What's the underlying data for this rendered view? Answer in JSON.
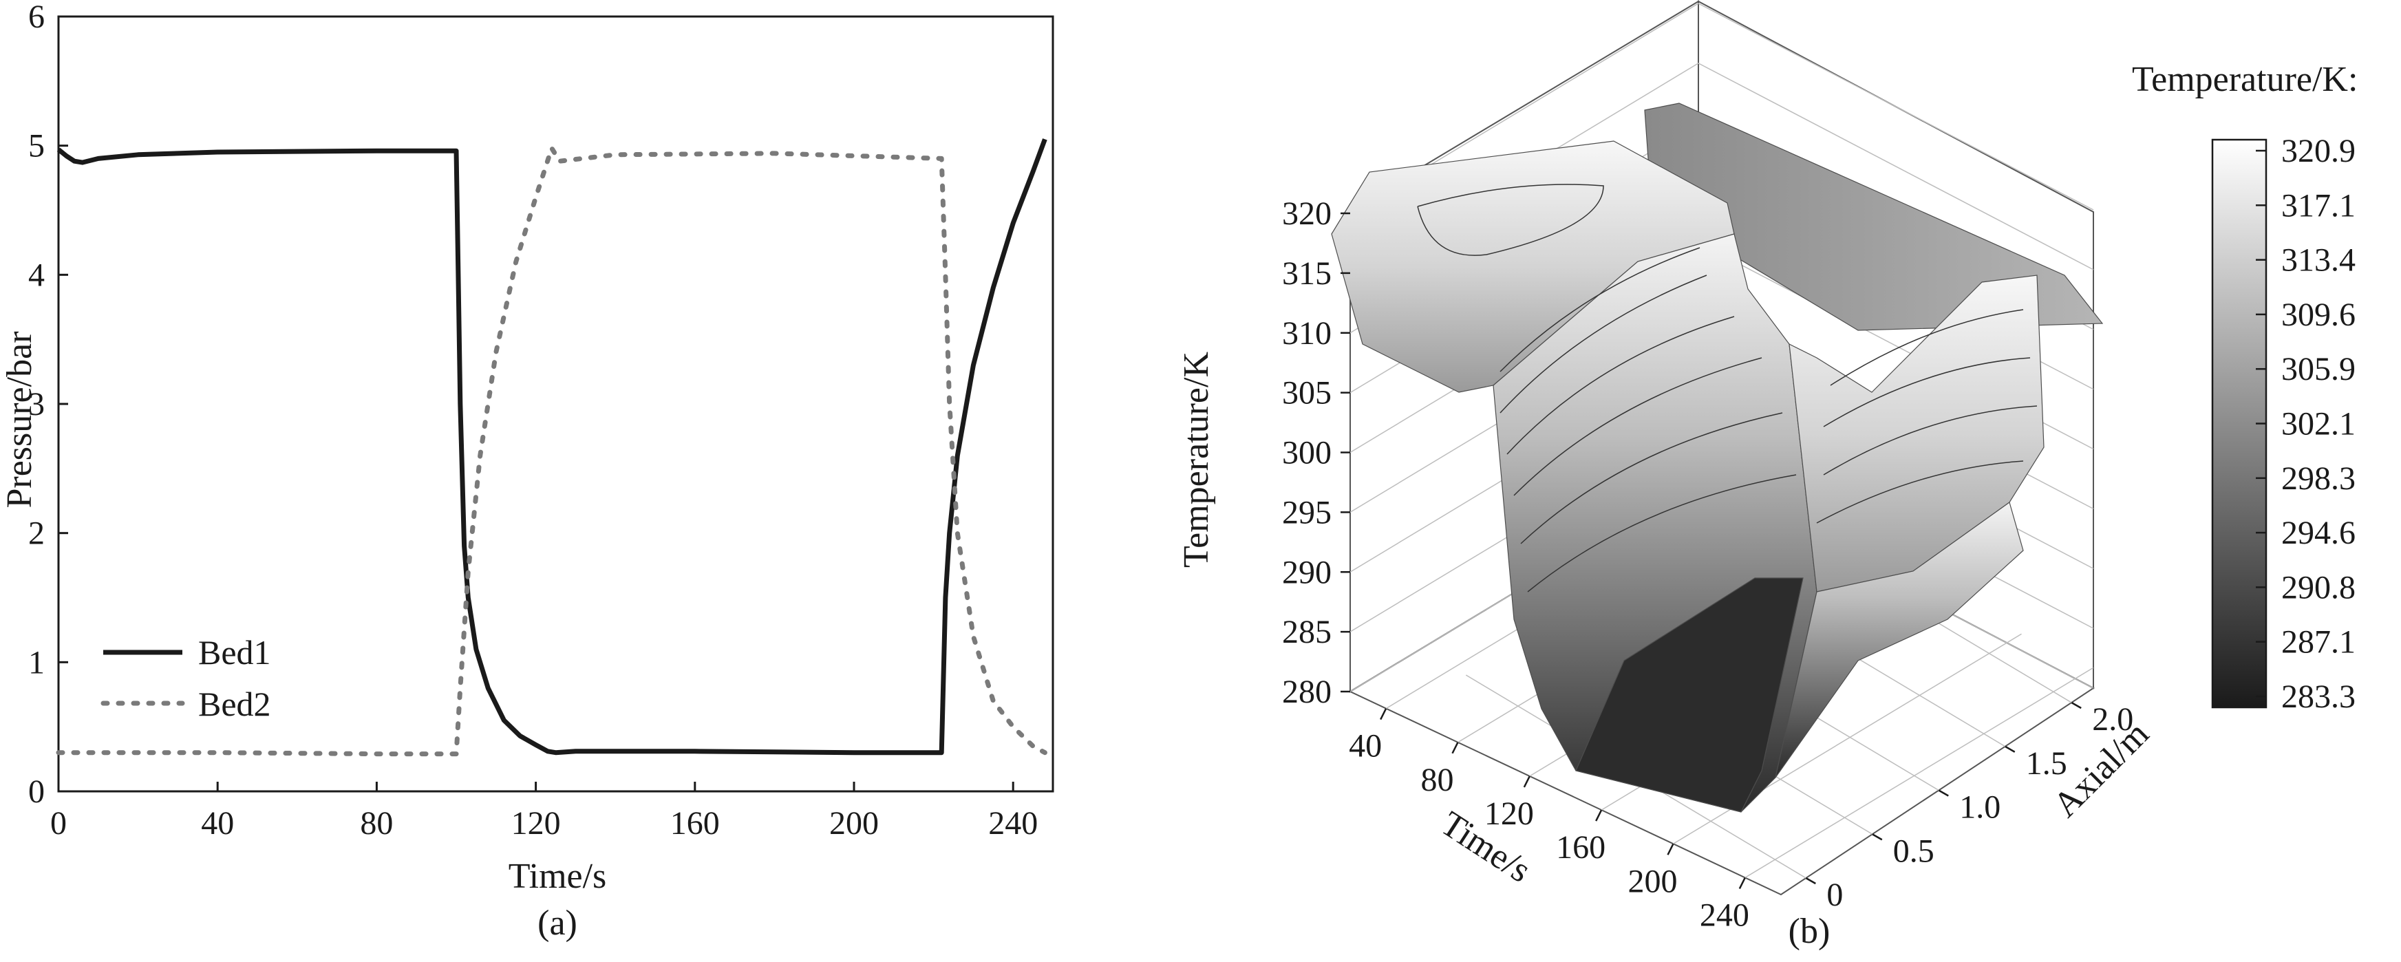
{
  "chart_data": [
    {
      "type": "line",
      "caption": "(a)",
      "xlabel": "Time/s",
      "ylabel": "Pressure/bar",
      "xlim": [
        0,
        250
      ],
      "ylim": [
        0,
        6
      ],
      "xticks": [
        "0",
        "40",
        "80",
        "120",
        "160",
        "200",
        "240"
      ],
      "yticks": [
        "0",
        "1",
        "2",
        "3",
        "4",
        "5",
        "6"
      ],
      "grid": false,
      "legend_position": "lower-left",
      "series": [
        {
          "name": "Bed1",
          "style": "solid",
          "color": "#1a1a1a",
          "x": [
            0,
            2,
            4,
            6,
            10,
            20,
            40,
            80,
            100,
            100.5,
            101,
            102,
            103,
            105,
            108,
            112,
            116,
            120,
            123,
            125,
            130,
            160,
            200,
            222,
            223,
            224,
            226,
            230,
            235,
            240,
            245,
            248
          ],
          "y": [
            4.97,
            4.92,
            4.88,
            4.87,
            4.9,
            4.93,
            4.95,
            4.96,
            4.96,
            4.0,
            3.0,
            1.9,
            1.5,
            1.1,
            0.8,
            0.55,
            0.43,
            0.36,
            0.31,
            0.3,
            0.31,
            0.31,
            0.3,
            0.3,
            1.5,
            2.0,
            2.6,
            3.3,
            3.9,
            4.4,
            4.8,
            5.05
          ]
        },
        {
          "name": "Bed2",
          "style": "dotted",
          "color": "#7a7a7a",
          "x": [
            0,
            40,
            80,
            100,
            101,
            103,
            106,
            110,
            115,
            120,
            124,
            126,
            140,
            180,
            222,
            223,
            224,
            226,
            230,
            235,
            240,
            245,
            248
          ],
          "y": [
            0.3,
            0.3,
            0.29,
            0.29,
            0.8,
            1.7,
            2.6,
            3.4,
            4.1,
            4.6,
            4.98,
            4.88,
            4.93,
            4.94,
            4.9,
            4.0,
            3.0,
            2.0,
            1.2,
            0.7,
            0.5,
            0.35,
            0.3
          ]
        }
      ]
    },
    {
      "type": "surface3d",
      "caption": "(b)",
      "xlabel": "Time/s",
      "ylabel": "Axial/m",
      "zlabel": "Temperature/K",
      "xticks": [
        "40",
        "80",
        "120",
        "160",
        "200",
        "240"
      ],
      "yticks": [
        "0",
        "0.5",
        "1.0",
        "1.5",
        "2.0"
      ],
      "zticks": [
        "280",
        "285",
        "290",
        "295",
        "300",
        "305",
        "310",
        "315",
        "320"
      ],
      "colorbar_title": "Temperature/K:",
      "colorbar_ticks": [
        "320.9",
        "317.1",
        "313.4",
        "309.6",
        "305.9",
        "302.1",
        "298.3",
        "294.6",
        "290.8",
        "287.1",
        "283.3"
      ],
      "colormap": [
        "#ffffff",
        "#1a1a1a"
      ]
    }
  ]
}
